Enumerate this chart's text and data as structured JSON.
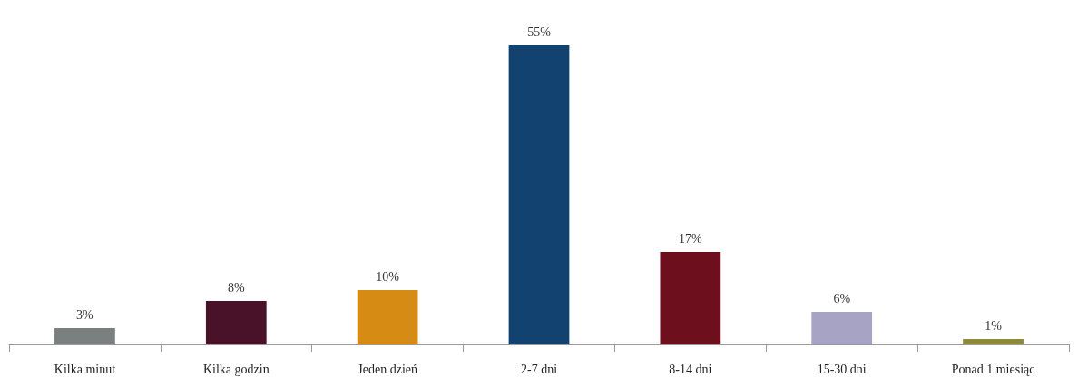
{
  "chart_data": {
    "type": "bar",
    "categories": [
      "Kilka minut",
      "Kilka godzin",
      "Jeden dzień",
      "2-7 dni",
      "8-14 dni",
      "15-30 dni",
      "Ponad 1 miesiąc"
    ],
    "values": [
      3,
      8,
      10,
      55,
      17,
      6,
      1
    ],
    "colors": [
      "#7a7f80",
      "#4a1228",
      "#d58b14",
      "#12426f",
      "#6e0f1d",
      "#a6a3c4",
      "#8c8a3a"
    ],
    "value_labels": [
      "3%",
      "8%",
      "10%",
      "55%",
      "17%",
      "6%",
      "1%"
    ],
    "grid": false
  }
}
